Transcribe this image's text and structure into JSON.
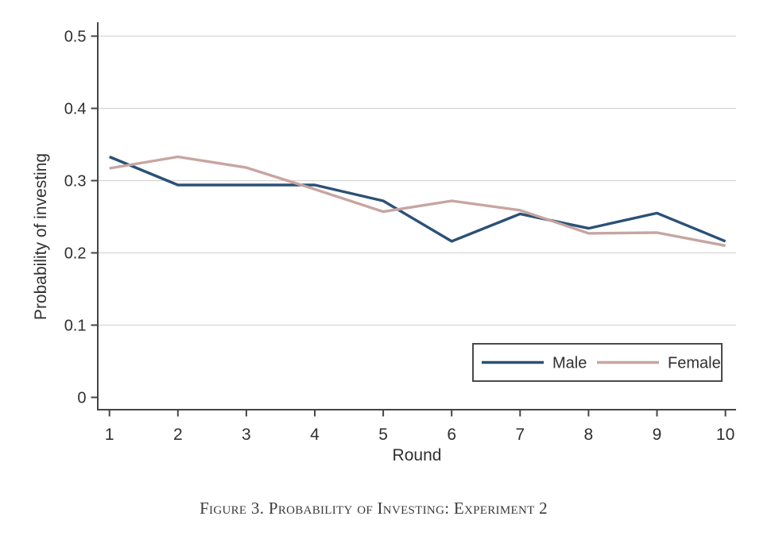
{
  "figure": {
    "caption": "Figure 3. Probability of Investing: Experiment 2"
  },
  "chart_data": {
    "type": "line",
    "title": "",
    "xlabel": "Round",
    "ylabel": "Probability of investing",
    "x": [
      1,
      2,
      3,
      4,
      5,
      6,
      7,
      8,
      9,
      10
    ],
    "series": [
      {
        "name": "Male",
        "color": "#2b5176",
        "values": [
          0.333,
          0.294,
          0.294,
          0.294,
          0.272,
          0.216,
          0.254,
          0.234,
          0.255,
          0.216
        ]
      },
      {
        "name": "Female",
        "color": "#c7a5a1",
        "values": [
          0.317,
          0.333,
          0.318,
          0.288,
          0.257,
          0.272,
          0.259,
          0.227,
          0.228,
          0.21
        ]
      }
    ],
    "xlim": [
      1,
      10
    ],
    "ylim": [
      0,
      0.5
    ],
    "yticks": [
      0,
      0.1,
      0.2,
      0.3,
      0.4,
      0.5
    ],
    "ytick_labels": [
      "0",
      "0.1",
      "0.2",
      "0.3",
      "0.4",
      "0.5"
    ],
    "xtick_labels": [
      "1",
      "2",
      "3",
      "4",
      "5",
      "6",
      "7",
      "8",
      "9",
      "10"
    ],
    "grid": "horizontal",
    "gridline_values": [
      0.1,
      0.2,
      0.3,
      0.4,
      0.5
    ],
    "legend": {
      "position": "bottom-right-inside",
      "entries": [
        "Male",
        "Female"
      ]
    },
    "colors": {
      "axis": "#454545",
      "grid": "#d5d5d5",
      "tick_text": "#303030",
      "legend_border": "#4a4a4a",
      "background": "#ffffff"
    }
  }
}
